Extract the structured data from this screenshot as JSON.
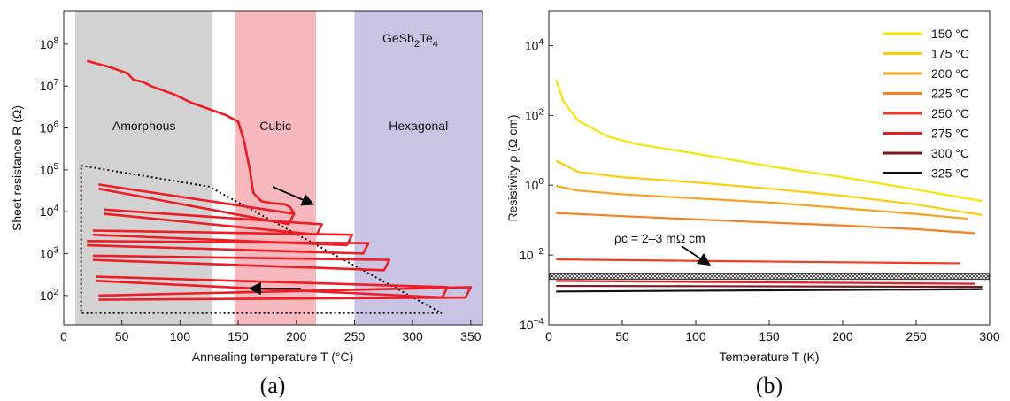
{
  "chart_data": [
    {
      "id": "a",
      "type": "line",
      "panel_label": "(a)",
      "xlabel": "Annealing temperature T (°C)",
      "ylabel": "Sheet resistance R (Ω)",
      "xlim": [
        0,
        360
      ],
      "ylim_log10": [
        1.3,
        8.8
      ],
      "x_ticks": [
        0,
        50,
        100,
        150,
        200,
        250,
        300,
        350
      ],
      "y_ticks": [
        {
          "exp": 2,
          "label": "10",
          "sup": "2"
        },
        {
          "exp": 3,
          "label": "10",
          "sup": "3"
        },
        {
          "exp": 4,
          "label": "10",
          "sup": "4"
        },
        {
          "exp": 5,
          "label": "10",
          "sup": "5"
        },
        {
          "exp": 6,
          "label": "10",
          "sup": "6"
        },
        {
          "exp": 7,
          "label": "10",
          "sup": "7"
        },
        {
          "exp": 8,
          "label": "10",
          "sup": "8"
        }
      ],
      "grid": false,
      "phase_regions": [
        {
          "label": "Amorphous",
          "x0": 10,
          "x1": 128,
          "color": "#d2d2d2"
        },
        {
          "label": "Cubic",
          "x0": 147,
          "x1": 217,
          "color": "#f7b9bd"
        },
        {
          "label": "Hexagonal",
          "x0": 250,
          "x1": 360,
          "color": "#c9c4e3"
        }
      ],
      "material_label": {
        "text": "GeSb",
        "sub1": "2",
        "mid": "Te",
        "sub2": "4"
      },
      "curve_color": "#ee1c24",
      "main_curve": [
        [
          20,
          7.6
        ],
        [
          40,
          7.45
        ],
        [
          55,
          7.3
        ],
        [
          60,
          7.15
        ],
        [
          68,
          7.1
        ],
        [
          75,
          7.0
        ],
        [
          95,
          6.8
        ],
        [
          110,
          6.6
        ],
        [
          125,
          6.45
        ],
        [
          140,
          6.3
        ],
        [
          150,
          6.15
        ],
        [
          155,
          5.7
        ],
        [
          160,
          5.0
        ],
        [
          163,
          4.45
        ],
        [
          170,
          4.25
        ],
        [
          180,
          4.2
        ],
        [
          190,
          4.18
        ],
        [
          195,
          4.1
        ],
        [
          198,
          3.95
        ]
      ],
      "cycles": [
        {
          "peak_x": 198,
          "peak_y": 3.95,
          "end_x": 30,
          "end_y": 4.65
        },
        {
          "peak_x": 222,
          "peak_y": 3.7,
          "end_x": 35,
          "end_y": 4.05
        },
        {
          "peak_x": 248,
          "peak_y": 3.45,
          "end_x": 25,
          "end_y": 3.55
        },
        {
          "peak_x": 262,
          "peak_y": 3.25,
          "end_x": 20,
          "end_y": 3.3
        },
        {
          "peak_x": 280,
          "peak_y": 2.85,
          "end_x": 25,
          "end_y": 2.95
        },
        {
          "peak_x": 330,
          "peak_y": 2.2,
          "end_x": 28,
          "end_y": 2.45
        },
        {
          "peak_x": 350,
          "peak_y": 2.2,
          "end_x": 30,
          "end_y": 2.0
        }
      ],
      "dotted_envelope": [
        [
          15,
          5.1
        ],
        [
          125,
          4.6
        ],
        [
          325,
          1.58
        ],
        [
          15,
          1.58
        ],
        [
          15,
          5.1
        ]
      ]
    },
    {
      "id": "b",
      "type": "line",
      "panel_label": "(b)",
      "xlabel": "Temperature T (K)",
      "ylabel": "Resistivity ρ (Ω cm)",
      "xlim": [
        0,
        300
      ],
      "ylim_log10": [
        -4,
        5
      ],
      "x_ticks": [
        0,
        50,
        100,
        150,
        200,
        250,
        300
      ],
      "y_ticks": [
        {
          "exp": -4,
          "label": "10",
          "sup": "−4"
        },
        {
          "exp": -2,
          "label": "10",
          "sup": "−2"
        },
        {
          "exp": 0,
          "label": "10",
          "sup": "0"
        },
        {
          "exp": 2,
          "label": "10",
          "sup": "2"
        },
        {
          "exp": 4,
          "label": "10",
          "sup": "4"
        }
      ],
      "grid": false,
      "legend_position": "top-right",
      "annotation": "ρc = 2–3 mΩ cm",
      "band_log10": [
        -2.7,
        -2.52
      ],
      "series": [
        {
          "name": "150 °C",
          "color": "#f5e400",
          "x": [
            5,
            10,
            20,
            40,
            60,
            100,
            150,
            200,
            250,
            295
          ],
          "y": [
            1050,
            250,
            70,
            25,
            15,
            8,
            3.5,
            1.7,
            0.75,
            0.35
          ]
        },
        {
          "name": "175 °C",
          "color": "#fbce0d",
          "x": [
            5,
            20,
            50,
            100,
            150,
            200,
            250,
            295
          ],
          "y": [
            5,
            2.4,
            1.7,
            1.2,
            0.8,
            0.5,
            0.28,
            0.14
          ]
        },
        {
          "name": "200 °C",
          "color": "#f7a21a",
          "x": [
            5,
            20,
            50,
            100,
            150,
            200,
            250,
            285
          ],
          "y": [
            0.95,
            0.7,
            0.55,
            0.42,
            0.32,
            0.22,
            0.15,
            0.11
          ]
        },
        {
          "name": "225 °C",
          "color": "#f57f21",
          "x": [
            5,
            50,
            100,
            150,
            200,
            250,
            290
          ],
          "y": [
            0.16,
            0.13,
            0.105,
            0.085,
            0.07,
            0.055,
            0.042
          ]
        },
        {
          "name": "250 °C",
          "color": "#ef3b24",
          "x": [
            5,
            100,
            200,
            280
          ],
          "y": [
            0.0075,
            0.0068,
            0.0062,
            0.0058
          ]
        },
        {
          "name": "275 °C",
          "color": "#e31e24",
          "x": [
            5,
            100,
            200,
            290
          ],
          "y": [
            0.0018,
            0.0017,
            0.0016,
            0.0015
          ]
        },
        {
          "name": "300 °C",
          "color": "#7a1a1a",
          "x": [
            5,
            100,
            200,
            295
          ],
          "y": [
            0.0013,
            0.00128,
            0.00125,
            0.00122
          ]
        },
        {
          "name": "325 °C",
          "color": "#111111",
          "x": [
            5,
            100,
            200,
            295
          ],
          "y": [
            0.0009,
            0.00095,
            0.001,
            0.00105
          ]
        }
      ]
    }
  ]
}
